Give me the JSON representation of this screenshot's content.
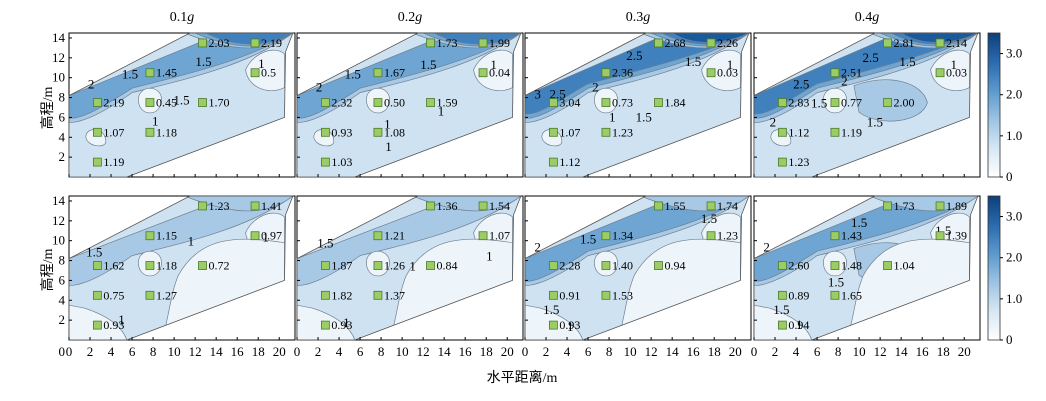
{
  "axes": {
    "xlabel": "水平距离/m",
    "ylabel": "高程/m",
    "xticks": [
      "0",
      "2",
      "4",
      "6",
      "8",
      "10",
      "12",
      "14",
      "16",
      "18",
      "20"
    ],
    "yticks": [
      "2",
      "4",
      "6",
      "8",
      "10",
      "12",
      "14"
    ],
    "xtick_values": [
      0,
      2,
      4,
      6,
      8,
      10,
      12,
      14,
      16,
      18,
      20
    ],
    "ytick_values": [
      2,
      4,
      6,
      8,
      10,
      12,
      14
    ],
    "xlim": [
      0,
      21.5
    ],
    "ylim": [
      0,
      14.5
    ]
  },
  "colors": {
    "band_0_1": "#eef5fa",
    "band_1_15": "#cfe2f1",
    "band_15_2": "#a7c9e5",
    "band_2_25": "#6ea5d2",
    "band_25_3": "#3f80bd",
    "band_3_plus": "#1a5a9c",
    "marker": "#9ccc65"
  },
  "colorbar": {
    "ticks": [
      "0",
      "1.0",
      "2.0",
      "3.0"
    ],
    "tick_values": [
      0,
      1,
      2,
      3
    ],
    "range": [
      0,
      3.5
    ],
    "stops": [
      "#ffffff",
      "#d6e7f3",
      "#9dc3e3",
      "#5b99cc",
      "#2a6aae",
      "#0d3f7a"
    ]
  },
  "chart_data": [
    {
      "type": "heatmap",
      "row": 0,
      "col": 0,
      "title_prefix": "0.1",
      "title_suffix": "g",
      "levels": [
        2,
        3,
        1,
        1
      ],
      "contour_labels": [
        {
          "t": "2",
          "x": 2.1,
          "y": 9.3
        },
        {
          "t": "1.5",
          "x": 5.8,
          "y": 10.3
        },
        {
          "t": "1.5",
          "x": 12.8,
          "y": 11.6
        },
        {
          "t": "1",
          "x": 8.2,
          "y": 5.6
        },
        {
          "t": "1.5",
          "x": 10.7,
          "y": 7.7
        },
        {
          "t": "1",
          "x": 18.3,
          "y": 11.4
        }
      ],
      "points": [
        {
          "x": 12.7,
          "y": 13.5,
          "v": "2.03"
        },
        {
          "x": 17.7,
          "y": 13.5,
          "v": "2.19"
        },
        {
          "x": 7.7,
          "y": 10.5,
          "v": "1.45"
        },
        {
          "x": 17.7,
          "y": 10.5,
          "v": "0.5"
        },
        {
          "x": 2.7,
          "y": 7.5,
          "v": "2.19"
        },
        {
          "x": 7.7,
          "y": 7.5,
          "v": "0.45"
        },
        {
          "x": 12.7,
          "y": 7.5,
          "v": "1.70"
        },
        {
          "x": 2.7,
          "y": 4.5,
          "v": "1.07"
        },
        {
          "x": 7.7,
          "y": 4.5,
          "v": "1.18"
        },
        {
          "x": 2.7,
          "y": 1.5,
          "v": "1.19"
        }
      ]
    },
    {
      "type": "heatmap",
      "row": 0,
      "col": 1,
      "title_prefix": "0.2",
      "title_suffix": "g",
      "levels": [
        2,
        3,
        1,
        1
      ],
      "contour_labels": [
        {
          "t": "2",
          "x": 2.1,
          "y": 9.0
        },
        {
          "t": "1.5",
          "x": 5.3,
          "y": 10.3
        },
        {
          "t": "1.5",
          "x": 12.5,
          "y": 11.3
        },
        {
          "t": "1",
          "x": 13.7,
          "y": 6.6
        },
        {
          "t": "1",
          "x": 8.6,
          "y": 5.3
        },
        {
          "t": "1",
          "x": 8.7,
          "y": 3.0
        },
        {
          "t": "1",
          "x": 18.7,
          "y": 11.3
        }
      ],
      "points": [
        {
          "x": 12.7,
          "y": 13.5,
          "v": "1.73"
        },
        {
          "x": 17.7,
          "y": 13.5,
          "v": "1.99"
        },
        {
          "x": 7.7,
          "y": 10.5,
          "v": "1.67"
        },
        {
          "x": 17.7,
          "y": 10.5,
          "v": "0.04"
        },
        {
          "x": 2.7,
          "y": 7.5,
          "v": "2.32"
        },
        {
          "x": 7.7,
          "y": 7.5,
          "v": "0.50"
        },
        {
          "x": 12.7,
          "y": 7.5,
          "v": "1.59"
        },
        {
          "x": 2.7,
          "y": 4.5,
          "v": "0.93"
        },
        {
          "x": 7.7,
          "y": 4.5,
          "v": "1.08"
        },
        {
          "x": 2.7,
          "y": 1.5,
          "v": "1.03"
        }
      ]
    },
    {
      "type": "heatmap",
      "row": 0,
      "col": 2,
      "title_prefix": "0.3",
      "title_suffix": "g",
      "levels": [
        3,
        4,
        1,
        2
      ],
      "contour_labels": [
        {
          "t": "3",
          "x": 1.2,
          "y": 8.3
        },
        {
          "t": "2.5",
          "x": 3.1,
          "y": 8.3
        },
        {
          "t": "2",
          "x": 6.7,
          "y": 9.0
        },
        {
          "t": "2.5",
          "x": 10.4,
          "y": 12.2
        },
        {
          "t": "1.5",
          "x": 16.0,
          "y": 11.6
        },
        {
          "t": "1",
          "x": 19.5,
          "y": 11.3
        },
        {
          "t": "1.5",
          "x": 11.3,
          "y": 6.0
        },
        {
          "t": "1",
          "x": 8.3,
          "y": 6.0
        }
      ],
      "points": [
        {
          "x": 12.7,
          "y": 13.5,
          "v": "2.68"
        },
        {
          "x": 17.7,
          "y": 13.5,
          "v": "2.26"
        },
        {
          "x": 7.7,
          "y": 10.5,
          "v": "2.36"
        },
        {
          "x": 17.7,
          "y": 10.5,
          "v": "0.03"
        },
        {
          "x": 2.7,
          "y": 7.5,
          "v": "3.04"
        },
        {
          "x": 7.7,
          "y": 7.5,
          "v": "0.73"
        },
        {
          "x": 12.7,
          "y": 7.5,
          "v": "1.84"
        },
        {
          "x": 2.7,
          "y": 4.5,
          "v": "1.07"
        },
        {
          "x": 7.7,
          "y": 4.5,
          "v": "1.23"
        },
        {
          "x": 2.7,
          "y": 1.5,
          "v": "1.12"
        }
      ]
    },
    {
      "type": "heatmap",
      "row": 0,
      "col": 3,
      "title_prefix": "0.4",
      "title_suffix": "g",
      "levels": [
        3,
        4,
        2,
        2
      ],
      "contour_labels": [
        {
          "t": "2.5",
          "x": 4.5,
          "y": 9.3
        },
        {
          "t": "2",
          "x": 8.6,
          "y": 9.6
        },
        {
          "t": "2.5",
          "x": 11.1,
          "y": 12.0
        },
        {
          "t": "1.5",
          "x": 14.6,
          "y": 11.6
        },
        {
          "t": "1",
          "x": 19.0,
          "y": 11.3
        },
        {
          "t": "2",
          "x": 1.8,
          "y": 5.5
        },
        {
          "t": "1.5",
          "x": 6.2,
          "y": 7.4
        },
        {
          "t": "1.5",
          "x": 11.5,
          "y": 5.5
        }
      ],
      "points": [
        {
          "x": 12.7,
          "y": 13.5,
          "v": "2.81"
        },
        {
          "x": 17.7,
          "y": 13.5,
          "v": "2.14"
        },
        {
          "x": 7.7,
          "y": 10.5,
          "v": "2.51"
        },
        {
          "x": 17.7,
          "y": 10.5,
          "v": "0.03"
        },
        {
          "x": 2.7,
          "y": 7.5,
          "v": "2.83"
        },
        {
          "x": 7.7,
          "y": 7.5,
          "v": "0.77"
        },
        {
          "x": 12.7,
          "y": 7.5,
          "v": "2.00"
        },
        {
          "x": 2.7,
          "y": 4.5,
          "v": "1.12"
        },
        {
          "x": 7.7,
          "y": 4.5,
          "v": "1.19"
        },
        {
          "x": 2.7,
          "y": 1.5,
          "v": "1.23"
        }
      ]
    },
    {
      "type": "heatmap",
      "row": 1,
      "col": 0,
      "levels": [
        1,
        1,
        1,
        0
      ],
      "contour_labels": [
        {
          "t": "1.5",
          "x": 2.4,
          "y": 8.8
        },
        {
          "t": "1",
          "x": 11.6,
          "y": 9.9
        },
        {
          "t": "1",
          "x": 18.7,
          "y": 10.3
        },
        {
          "t": "1",
          "x": 5.0,
          "y": 2.0
        }
      ],
      "points": [
        {
          "x": 12.7,
          "y": 13.5,
          "v": "1.23"
        },
        {
          "x": 17.7,
          "y": 13.5,
          "v": "1.41"
        },
        {
          "x": 7.7,
          "y": 10.5,
          "v": "1.15"
        },
        {
          "x": 17.7,
          "y": 10.5,
          "v": "0.97"
        },
        {
          "x": 2.7,
          "y": 7.5,
          "v": "1.62"
        },
        {
          "x": 7.7,
          "y": 7.5,
          "v": "1.18"
        },
        {
          "x": 12.7,
          "y": 7.5,
          "v": "0.72"
        },
        {
          "x": 2.7,
          "y": 4.5,
          "v": "0.75"
        },
        {
          "x": 7.7,
          "y": 4.5,
          "v": "1.27"
        },
        {
          "x": 2.7,
          "y": 1.5,
          "v": "0.93"
        }
      ]
    },
    {
      "type": "heatmap",
      "row": 1,
      "col": 1,
      "levels": [
        1,
        1,
        1,
        0
      ],
      "contour_labels": [
        {
          "t": "1.5",
          "x": 2.7,
          "y": 9.7
        },
        {
          "t": "1",
          "x": 11.0,
          "y": 7.4
        },
        {
          "t": "1",
          "x": 18.3,
          "y": 8.4
        },
        {
          "t": "1",
          "x": 4.7,
          "y": 1.7
        }
      ],
      "points": [
        {
          "x": 12.7,
          "y": 13.5,
          "v": "1.36"
        },
        {
          "x": 17.7,
          "y": 13.5,
          "v": "1.54"
        },
        {
          "x": 7.7,
          "y": 10.5,
          "v": "1.21"
        },
        {
          "x": 17.7,
          "y": 10.5,
          "v": "1.07"
        },
        {
          "x": 2.7,
          "y": 7.5,
          "v": "1.87"
        },
        {
          "x": 7.7,
          "y": 7.5,
          "v": "1.26"
        },
        {
          "x": 12.7,
          "y": 7.5,
          "v": "0.84"
        },
        {
          "x": 2.7,
          "y": 4.5,
          "v": "1.82"
        },
        {
          "x": 7.7,
          "y": 4.5,
          "v": "1.37"
        },
        {
          "x": 2.7,
          "y": 1.5,
          "v": "0.93"
        }
      ]
    },
    {
      "type": "heatmap",
      "row": 1,
      "col": 2,
      "levels": [
        2,
        1,
        1,
        0
      ],
      "contour_labels": [
        {
          "t": "2",
          "x": 1.2,
          "y": 9.3
        },
        {
          "t": "1.5",
          "x": 6.0,
          "y": 10.1
        },
        {
          "t": "1.5",
          "x": 17.5,
          "y": 12.2
        },
        {
          "t": "1.5",
          "x": 2.5,
          "y": 3.0
        },
        {
          "t": "1",
          "x": 4.3,
          "y": 1.3
        }
      ],
      "points": [
        {
          "x": 12.7,
          "y": 13.5,
          "v": "1.55"
        },
        {
          "x": 17.7,
          "y": 13.5,
          "v": "1.74"
        },
        {
          "x": 7.7,
          "y": 10.5,
          "v": "1.34"
        },
        {
          "x": 17.7,
          "y": 10.5,
          "v": "1.23"
        },
        {
          "x": 2.7,
          "y": 7.5,
          "v": "2.28"
        },
        {
          "x": 7.7,
          "y": 7.5,
          "v": "1.40"
        },
        {
          "x": 12.7,
          "y": 7.5,
          "v": "0.94"
        },
        {
          "x": 2.7,
          "y": 4.5,
          "v": "0.91"
        },
        {
          "x": 7.7,
          "y": 4.5,
          "v": "1.53"
        },
        {
          "x": 2.7,
          "y": 1.5,
          "v": "0.93"
        }
      ]
    },
    {
      "type": "heatmap",
      "row": 1,
      "col": 3,
      "levels": [
        2,
        1,
        2,
        1
      ],
      "contour_labels": [
        {
          "t": "2",
          "x": 1.2,
          "y": 9.3
        },
        {
          "t": "1.5",
          "x": 10.0,
          "y": 11.8
        },
        {
          "t": "1.5",
          "x": 18.0,
          "y": 11.0
        },
        {
          "t": "1.5",
          "x": 7.8,
          "y": 5.8
        },
        {
          "t": "1.5",
          "x": 2.6,
          "y": 3.0
        },
        {
          "t": "1",
          "x": 4.3,
          "y": 1.5
        }
      ],
      "points": [
        {
          "x": 12.7,
          "y": 13.5,
          "v": "1.73"
        },
        {
          "x": 17.7,
          "y": 13.5,
          "v": "1.89"
        },
        {
          "x": 7.7,
          "y": 10.5,
          "v": "1.43"
        },
        {
          "x": 17.7,
          "y": 10.5,
          "v": "1.39"
        },
        {
          "x": 2.7,
          "y": 7.5,
          "v": "2.60"
        },
        {
          "x": 7.7,
          "y": 7.5,
          "v": "1.48"
        },
        {
          "x": 12.7,
          "y": 7.5,
          "v": "1.04"
        },
        {
          "x": 2.7,
          "y": 4.5,
          "v": "0.89"
        },
        {
          "x": 7.7,
          "y": 4.5,
          "v": "1.65"
        },
        {
          "x": 2.7,
          "y": 1.5,
          "v": "0.94"
        }
      ]
    }
  ]
}
